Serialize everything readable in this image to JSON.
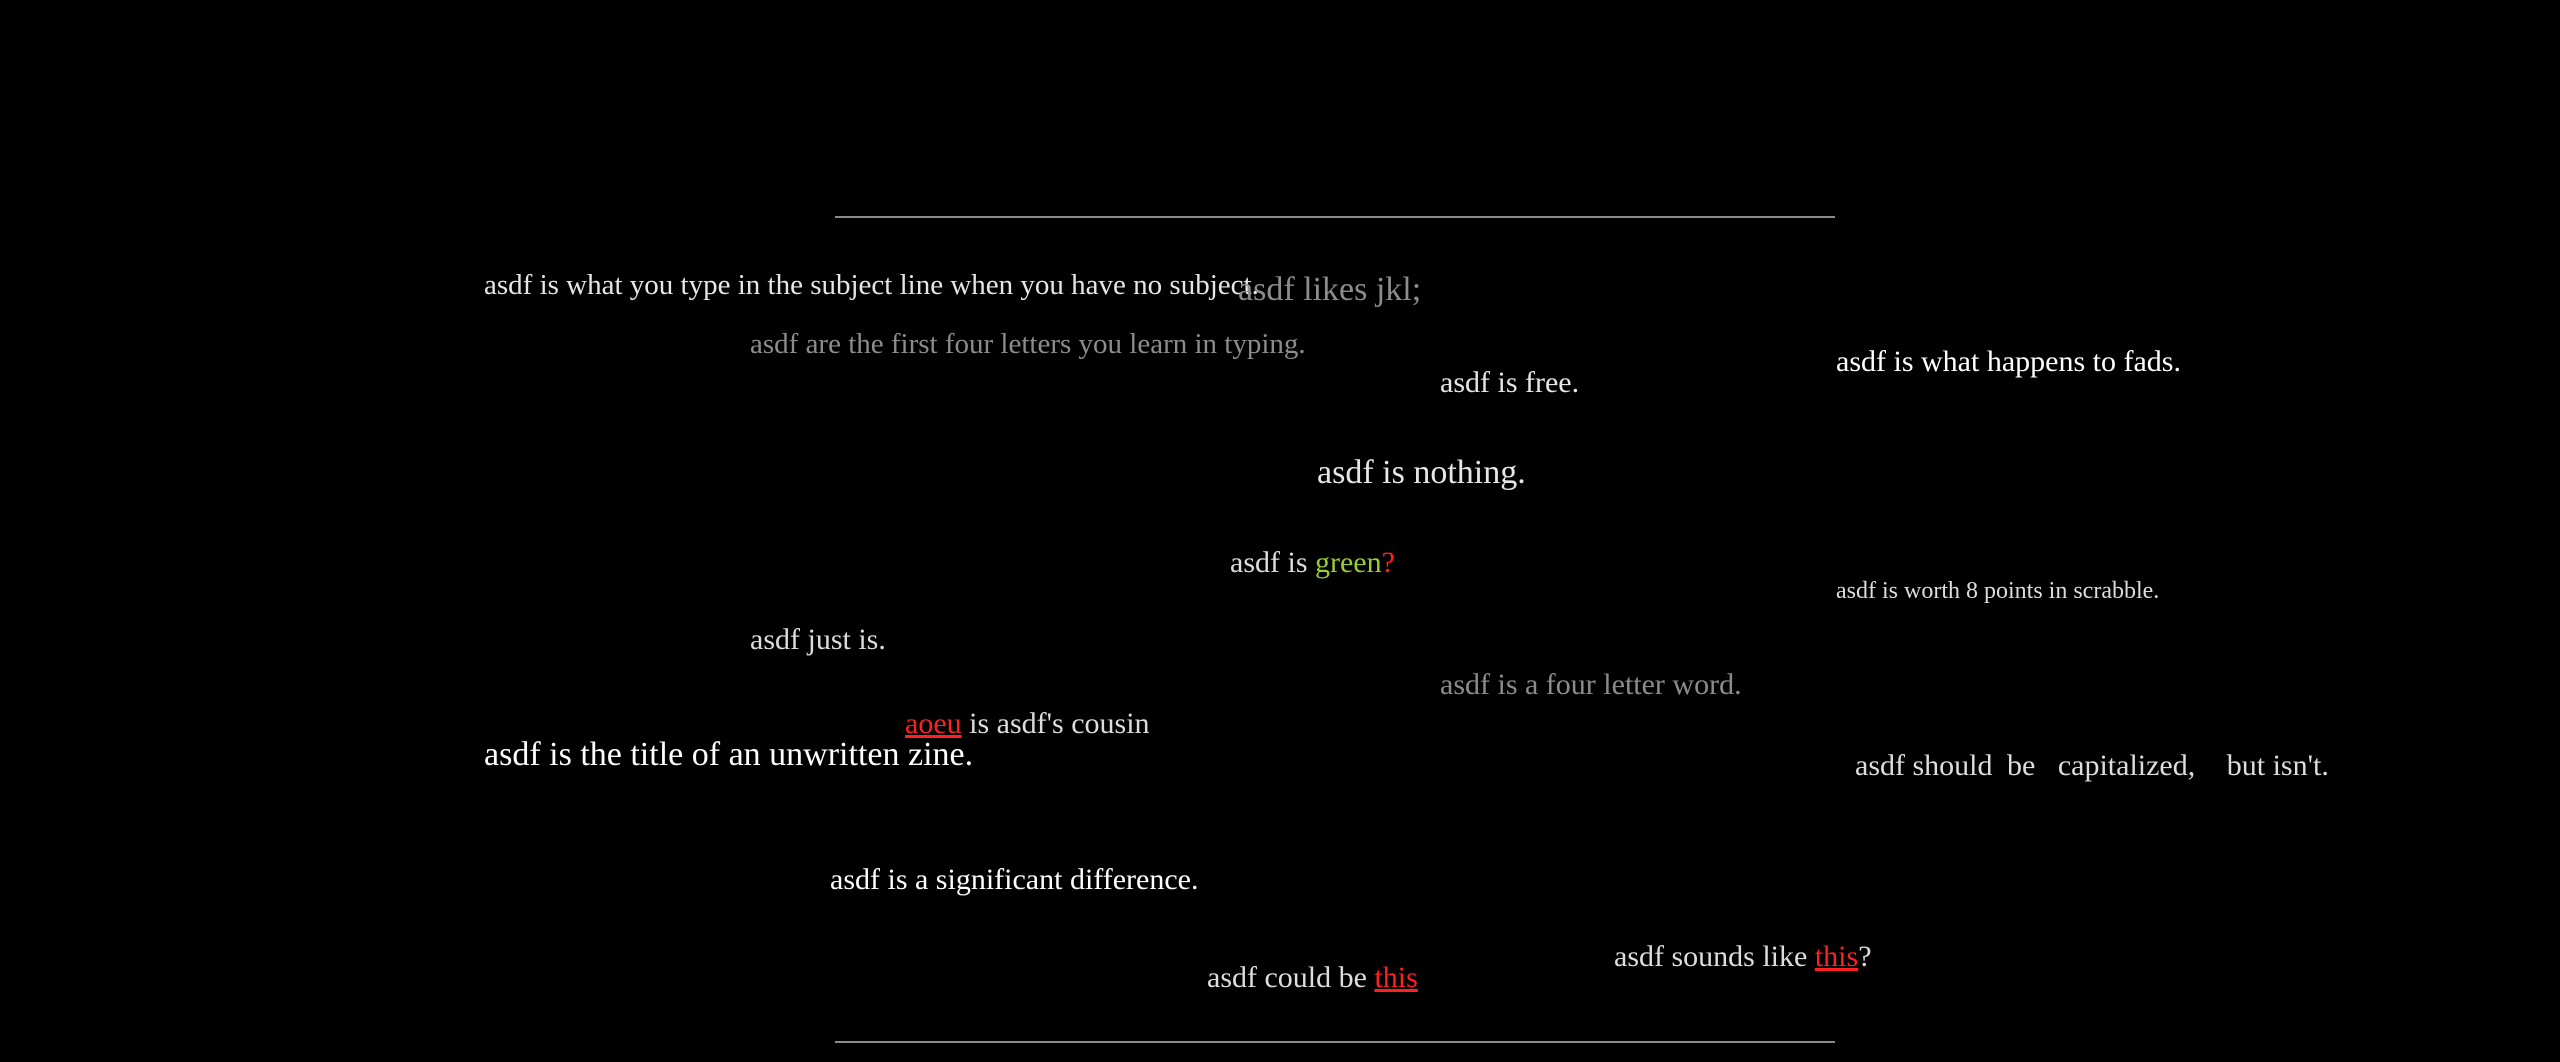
{
  "blocks": {
    "subject": {
      "lines": [
        "asdf is what",
        "you type",
        "in the subject",
        "line",
        "when you have",
        "no subject."
      ]
    },
    "first_letters": {
      "lines": [
        "asdf are the first",
        "four letters you",
        "learn in typing."
      ]
    },
    "likes": {
      "text": "asdf likes jkl;"
    },
    "free": {
      "text": "asdf is free."
    },
    "nothing": {
      "text": "asdf is nothing."
    },
    "fads": {
      "lines": [
        "asdf is",
        "what",
        "happens",
        "to fads."
      ]
    },
    "scrabble": {
      "text": "asdf is worth 8 points in scrabble."
    },
    "green": {
      "line1": "asdf",
      "line2": "is",
      "green_word": "green",
      "question": "?"
    },
    "just": {
      "text": "asdf just is."
    },
    "four_letter": {
      "lines": [
        "asdf is a four",
        "letter word."
      ]
    },
    "cousin": {
      "link_text": "aoeu",
      "after_link": " is",
      "line2": "asdf's cousin"
    },
    "zine": {
      "lines": [
        "asdf is the title",
        "of",
        "an unwritten zine."
      ]
    },
    "capitalized": {
      "lines": [
        "asdf should",
        "be",
        "capitalized,",
        "but isn't."
      ]
    },
    "significant": {
      "text": "asdf is a significant difference."
    },
    "could_be": {
      "prefix": "asdf could be ",
      "link_text": "this"
    },
    "sounds_like": {
      "line1": "asdf",
      "prefix": "sounds like ",
      "link_text": "this",
      "suffix": "?"
    }
  },
  "colors": {
    "background": "#000000",
    "text_white": "#ffffff",
    "text_light": "#dddddd",
    "text_gray": "#8c8c8c",
    "green": "#9acd32",
    "link_red": "#ff2020",
    "rule": "#8a8a8a"
  }
}
